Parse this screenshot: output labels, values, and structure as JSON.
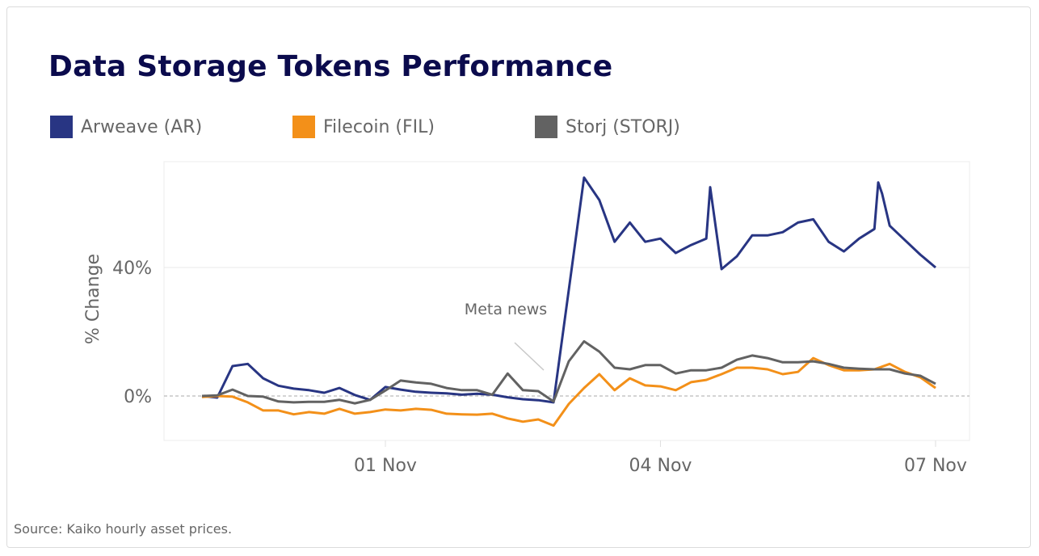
{
  "chart_data": {
    "type": "line",
    "title": "Data Storage Tokens Performance",
    "ylabel": "% Change",
    "xlabel": "",
    "ylim": [
      -14,
      73
    ],
    "xlim": [
      "30 Oct 00:00",
      "07 Nov 00:00"
    ],
    "x_ticks": [
      {
        "at": "01 Nov 00:00",
        "label": "01 Nov"
      },
      {
        "at": "04 Nov 00:00",
        "label": "04 Nov"
      },
      {
        "at": "07 Nov 00:00",
        "label": "07 Nov"
      }
    ],
    "y_ticks": [
      {
        "value": 0,
        "label": "0%"
      },
      {
        "value": 40,
        "label": "40%"
      }
    ],
    "grid": "horizontal",
    "zero_line": "dashed",
    "legend_placement": "top",
    "annotation": {
      "text": "Meta news",
      "at": "02 Nov 21:00",
      "value": 7
    },
    "source": "Source: Kaiko hourly asset prices.",
    "x": [
      "30 Oct 00:00",
      "30 Oct 04:00",
      "30 Oct 08:00",
      "30 Oct 12:00",
      "30 Oct 16:00",
      "30 Oct 20:00",
      "31 Oct 00:00",
      "31 Oct 04:00",
      "31 Oct 08:00",
      "31 Oct 12:00",
      "31 Oct 16:00",
      "31 Oct 20:00",
      "01 Nov 00:00",
      "01 Nov 04:00",
      "01 Nov 08:00",
      "01 Nov 12:00",
      "01 Nov 16:00",
      "01 Nov 20:00",
      "02 Nov 00:00",
      "02 Nov 04:00",
      "02 Nov 08:00",
      "02 Nov 12:00",
      "02 Nov 16:00",
      "02 Nov 20:00",
      "03 Nov 00:00",
      "03 Nov 04:00",
      "03 Nov 08:00",
      "03 Nov 12:00",
      "03 Nov 16:00",
      "03 Nov 20:00",
      "04 Nov 00:00",
      "04 Nov 04:00",
      "04 Nov 08:00",
      "04 Nov 12:00",
      "04 Nov 16:00",
      "04 Nov 20:00",
      "05 Nov 00:00",
      "05 Nov 04:00",
      "05 Nov 08:00",
      "05 Nov 12:00",
      "05 Nov 16:00",
      "05 Nov 20:00",
      "06 Nov 00:00",
      "06 Nov 04:00",
      "06 Nov 08:00",
      "06 Nov 12:00",
      "06 Nov 16:00",
      "06 Nov 20:00",
      "07 Nov 00:00"
    ],
    "series": [
      {
        "name": "Arweave (AR)",
        "color": "#283583",
        "values": [
          0,
          -0.5,
          9.3,
          10,
          5.5,
          3.2,
          2.3,
          1.8,
          1,
          2.5,
          0.3,
          -1.2,
          2.8,
          2,
          1.3,
          1,
          0.8,
          0.4,
          0.7,
          0.4,
          -0.4,
          -1,
          -1.3,
          -2,
          33,
          68,
          61,
          48,
          54,
          48,
          49,
          44.5,
          47,
          49,
          39.5,
          43.5,
          50,
          50,
          51,
          54,
          55,
          48,
          45,
          49,
          52,
          53,
          48.5,
          44,
          40
        ],
        "extra_points": [
          [
            "04 Nov 13:00",
            65
          ],
          [
            "06 Nov 09:00",
            66.5
          ],
          [
            "06 Nov 10:00",
            63
          ]
        ]
      },
      {
        "name": "Filecoin (FIL)",
        "color": "#f39019",
        "values": [
          -0.3,
          0,
          -0.2,
          -2,
          -4.5,
          -4.5,
          -5.7,
          -5,
          -5.5,
          -4,
          -5.5,
          -5,
          -4.2,
          -4.5,
          -4,
          -4.3,
          -5.5,
          -5.7,
          -5.8,
          -5.5,
          -7,
          -8,
          -7.3,
          -9.2,
          -2.5,
          2.5,
          6.8,
          1.8,
          5.5,
          3.3,
          3,
          1.8,
          4.3,
          5,
          6.8,
          8.8,
          8.8,
          8.3,
          6.8,
          7.5,
          11.8,
          9.6,
          8,
          8,
          8.3,
          10,
          7.5,
          5.8,
          2.5
        ]
      },
      {
        "name": "Storj (STORJ)",
        "color": "#626262",
        "values": [
          0,
          0.2,
          2,
          0,
          -0.2,
          -1.7,
          -2,
          -1.8,
          -1.8,
          -1.2,
          -2.3,
          -1.2,
          1.7,
          4.8,
          4.2,
          3.8,
          2.5,
          1.8,
          1.8,
          0.4,
          7,
          1.8,
          1.5,
          -1.7,
          10.8,
          17,
          13.8,
          8.8,
          8.3,
          9.6,
          9.6,
          7,
          8,
          8,
          8.8,
          11.3,
          12.6,
          11.8,
          10.5,
          10.5,
          10.8,
          10,
          8.8,
          8.5,
          8.3,
          8.3,
          7,
          6.3,
          3.8
        ]
      }
    ]
  }
}
